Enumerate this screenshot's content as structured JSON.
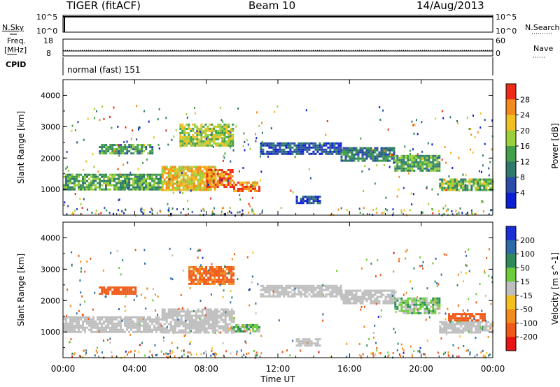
{
  "header": {
    "radar": "TIGER (fitACF)",
    "beam": "Beam 10",
    "date": "14/Aug/2013"
  },
  "strip": {
    "nsky_label": "N.Sky",
    "nsearch_label": "N.Search",
    "nsky_ticks": [
      "10^5",
      "10^0"
    ],
    "nsearch_ticks": [
      "10^5",
      "10^0"
    ],
    "freq_label_1": "Freq.",
    "freq_label_2": "[MHz]",
    "freq_ticks": [
      "18",
      "8"
    ],
    "nave_label": "Nave",
    "nave_ticks": [
      "60",
      "0"
    ],
    "cpid_label": "CPID",
    "cpid_value": "normal (fast) 151"
  },
  "chart_data": [
    {
      "type": "heatmap",
      "panel": "power",
      "ylabel": "Slant Range [km]",
      "xlabel": "Time UT",
      "ylim": [
        180,
        4500
      ],
      "xlim": [
        0,
        24
      ],
      "x_ticks": [
        "00:00",
        "04:00",
        "08:00",
        "12:00",
        "16:00",
        "20:00",
        "00:00"
      ],
      "y_ticks": [
        1000,
        2000,
        3000,
        4000
      ],
      "colorbar": {
        "label": "Power [dB]",
        "ticks": [
          4,
          8,
          12,
          16,
          20,
          24,
          28
        ],
        "colors": [
          "#0a1fd6",
          "#2d4ba8",
          "#2f7a6a",
          "#43a04a",
          "#9bcf3c",
          "#f0c020",
          "#f38a1c",
          "#ee2b16"
        ]
      },
      "bands": [
        {
          "t0": 0.0,
          "t1": 5.5,
          "r0": 1000,
          "r1": 1500,
          "level": 14
        },
        {
          "t0": 5.5,
          "t1": 8.5,
          "r0": 1000,
          "r1": 1750,
          "level": 22
        },
        {
          "t0": 8.0,
          "t1": 9.5,
          "r0": 1050,
          "r1": 1650,
          "level": 28
        },
        {
          "t0": 9.5,
          "t1": 11.0,
          "r0": 950,
          "r1": 1250,
          "level": 26
        },
        {
          "t0": 11.0,
          "t1": 15.5,
          "r0": 2150,
          "r1": 2500,
          "level": 6
        },
        {
          "t0": 13.0,
          "t1": 14.3,
          "r0": 550,
          "r1": 800,
          "level": 6
        },
        {
          "t0": 15.5,
          "t1": 18.5,
          "r0": 1900,
          "r1": 2350,
          "level": 10
        },
        {
          "t0": 18.5,
          "t1": 21.0,
          "r0": 1600,
          "r1": 2100,
          "level": 14
        },
        {
          "t0": 21.0,
          "t1": 24.0,
          "r0": 1000,
          "r1": 1350,
          "level": 16
        },
        {
          "t0": 6.5,
          "t1": 9.5,
          "r0": 2400,
          "r1": 3100,
          "level": 18
        },
        {
          "t0": 2.0,
          "t1": 5.0,
          "r0": 2150,
          "r1": 2450,
          "level": 12
        }
      ]
    },
    {
      "type": "heatmap",
      "panel": "velocity",
      "ylabel": "Slant Range [km]",
      "xlabel": "Time UT",
      "ylim": [
        180,
        4500
      ],
      "xlim": [
        0,
        24
      ],
      "x_ticks": [
        "00:00",
        "04:00",
        "08:00",
        "12:00",
        "16:00",
        "20:00",
        "00:00"
      ],
      "y_ticks": [
        1000,
        2000,
        3000,
        4000
      ],
      "colorbar": {
        "label": "Velocity [m s^-1]",
        "ticks": [
          200,
          100,
          50,
          15,
          -15,
          -50,
          -100,
          -200
        ],
        "colors": [
          "#1a2ed8",
          "#2d6aa8",
          "#2f8a5a",
          "#6dcc3c",
          "#bfbfbf",
          "#f4c020",
          "#f38a1c",
          "#f05a18",
          "#e81414"
        ]
      },
      "bands": [
        {
          "t0": 0.0,
          "t1": 5.5,
          "r0": 1000,
          "r1": 1500,
          "level": 0
        },
        {
          "t0": 5.5,
          "t1": 9.5,
          "r0": 1000,
          "r1": 1750,
          "level": 0
        },
        {
          "t0": 9.5,
          "t1": 11.0,
          "r0": 1000,
          "r1": 1250,
          "level": 30
        },
        {
          "t0": 11.0,
          "t1": 15.5,
          "r0": 2150,
          "r1": 2500,
          "level": 0
        },
        {
          "t0": 13.0,
          "t1": 14.3,
          "r0": 550,
          "r1": 800,
          "level": 0
        },
        {
          "t0": 15.5,
          "t1": 18.5,
          "r0": 1900,
          "r1": 2350,
          "level": 0
        },
        {
          "t0": 18.5,
          "t1": 21.0,
          "r0": 1600,
          "r1": 2100,
          "level": 30
        },
        {
          "t0": 21.0,
          "t1": 24.0,
          "r0": 1000,
          "r1": 1350,
          "level": 0
        },
        {
          "t0": 21.5,
          "t1": 23.5,
          "r0": 1350,
          "r1": 1600,
          "level": -150
        },
        {
          "t0": 7.0,
          "t1": 9.5,
          "r0": 2500,
          "r1": 3100,
          "level": -120
        },
        {
          "t0": 2.0,
          "t1": 4.0,
          "r0": 2200,
          "r1": 2450,
          "level": -150
        }
      ]
    }
  ]
}
